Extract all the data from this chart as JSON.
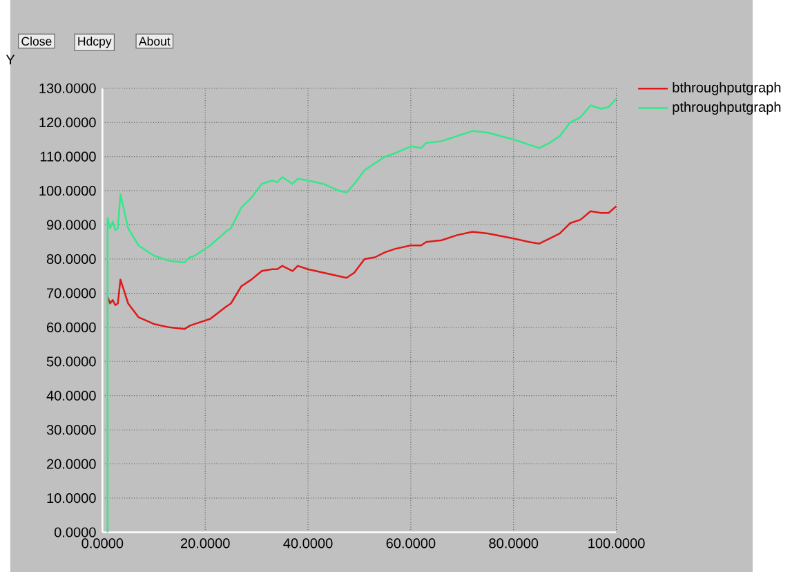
{
  "chart_data": {
    "type": "line",
    "ylabel": "Y",
    "annotations": [
      "Close",
      "Hdcpy",
      "About"
    ],
    "xlim": [
      0,
      100
    ],
    "ylim": [
      0,
      130
    ],
    "xticks": [
      {
        "value": 0,
        "label": "0.0000"
      },
      {
        "value": 20,
        "label": "20.0000"
      },
      {
        "value": 40,
        "label": "40.0000"
      },
      {
        "value": 60,
        "label": "60.0000"
      },
      {
        "value": 80,
        "label": "80.0000"
      },
      {
        "value": 100,
        "label": "100.0000"
      }
    ],
    "yticks": [
      {
        "value": 0,
        "label": "0.0000"
      },
      {
        "value": 10,
        "label": "10.0000"
      },
      {
        "value": 20,
        "label": "20.0000"
      },
      {
        "value": 30,
        "label": "30.0000"
      },
      {
        "value": 40,
        "label": "40.0000"
      },
      {
        "value": 50,
        "label": "50.0000"
      },
      {
        "value": 60,
        "label": "60.0000"
      },
      {
        "value": 70,
        "label": "70.0000"
      },
      {
        "value": 80,
        "label": "80.0000"
      },
      {
        "value": 90,
        "label": "90.0000"
      },
      {
        "value": 100,
        "label": "100.0000"
      },
      {
        "value": 110,
        "label": "110.0000"
      },
      {
        "value": 120,
        "label": "120.0000"
      },
      {
        "value": 130,
        "label": "130.0000"
      }
    ],
    "grid": true,
    "legend": "top right",
    "marker": "none",
    "line_style": "solid",
    "series": [
      {
        "name": "bthroughputgraph",
        "color": "#e01818",
        "x": [
          1,
          1.5,
          2,
          2.5,
          3,
          3.5,
          5,
          7,
          10,
          13,
          16,
          17,
          18,
          21,
          24,
          25,
          27,
          29,
          31,
          33,
          34,
          35,
          37,
          38,
          40,
          43,
          46,
          47.5,
          49,
          51,
          53,
          55,
          57,
          60,
          62,
          63,
          66,
          69,
          72,
          75,
          80,
          83,
          85,
          87,
          89,
          91,
          93,
          95,
          97,
          98.5,
          100
        ],
        "values": [
          69,
          67,
          68,
          66.5,
          67,
          74,
          67,
          63,
          61,
          60,
          59.5,
          60.5,
          61,
          62.5,
          66,
          67,
          72,
          74,
          76.5,
          77,
          77,
          78,
          76.5,
          78,
          77,
          76,
          75,
          74.5,
          76,
          80,
          80.5,
          82,
          83,
          84,
          84,
          85,
          85.5,
          87,
          88,
          87.5,
          86,
          85,
          84.5,
          86,
          87.5,
          90.5,
          91.5,
          94,
          93.5,
          93.5,
          95.5
        ]
      },
      {
        "name": "pthroughputgraph",
        "color": "#33e88a",
        "x": [
          1,
          1,
          1.5,
          2,
          2.5,
          3,
          3.5,
          5,
          7,
          10,
          13,
          16,
          17,
          18,
          21,
          24,
          25,
          27,
          29,
          31,
          33,
          34,
          35,
          37,
          38,
          40,
          43,
          46,
          47.5,
          49,
          51,
          53,
          55,
          57,
          60,
          62,
          63,
          66,
          69,
          72,
          75,
          80,
          83,
          85,
          87,
          89,
          91,
          93,
          95,
          97,
          98.5,
          100
        ],
        "values": [
          0,
          92,
          89,
          91,
          88.5,
          89,
          99,
          89,
          84,
          81,
          79.5,
          79,
          80.5,
          81,
          84,
          88,
          89,
          95,
          98,
          102,
          103,
          102.5,
          104,
          102,
          103.5,
          103,
          102,
          100,
          99.5,
          102,
          106,
          108,
          110,
          111,
          113,
          112.5,
          114,
          114.5,
          116,
          117.5,
          117,
          115,
          113.5,
          112.5,
          114,
          116,
          120,
          121.5,
          125,
          124,
          124.5,
          127
        ]
      }
    ]
  }
}
